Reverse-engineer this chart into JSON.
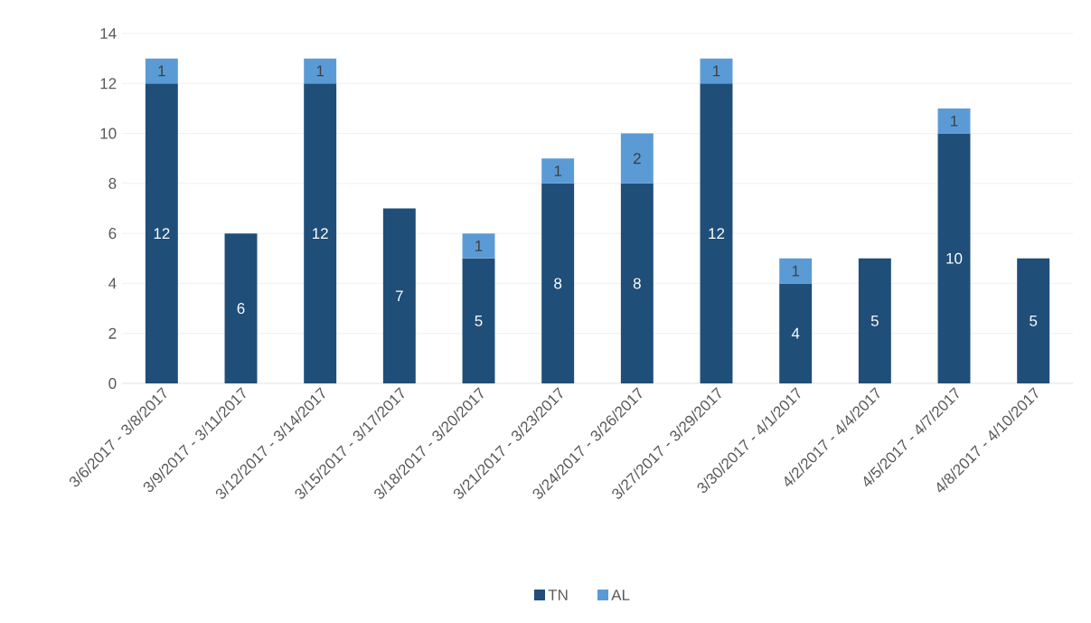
{
  "chart_data": {
    "type": "bar",
    "stacked": true,
    "grid": "y",
    "legend": "bottom",
    "categories": [
      "3/6/2017 - 3/8/2017",
      "3/9/2017 - 3/11/2017",
      "3/12/2017 - 3/14/2017",
      "3/15/2017 - 3/17/2017",
      "3/18/2017 - 3/20/2017",
      "3/21/2017 - 3/23/2017",
      "3/24/2017 - 3/26/2017",
      "3/27/2017 - 3/29/2017",
      "3/30/2017 - 4/1/2017",
      "4/2/2017 - 4/4/2017",
      "4/5/2017 - 4/7/2017",
      "4/8/2017 - 4/10/2017"
    ],
    "series": [
      {
        "name": "TN",
        "color": "#1f4e79",
        "values": [
          12,
          6,
          12,
          7,
          5,
          8,
          8,
          12,
          4,
          5,
          10,
          5
        ],
        "value_labels": [
          "12",
          "6",
          "12",
          "7",
          "5",
          "8",
          "8",
          "12",
          "4",
          "5",
          "10",
          "5"
        ]
      },
      {
        "name": "AL",
        "color": "#5b9bd5",
        "values": [
          1,
          null,
          1,
          null,
          1,
          1,
          2,
          1,
          1,
          null,
          1,
          null
        ],
        "value_labels": [
          "1",
          null,
          "1",
          null,
          "1",
          "1",
          "2",
          "1",
          "1",
          null,
          "1",
          null
        ]
      }
    ],
    "ylim": [
      0,
      14
    ],
    "yticks": [
      0,
      2,
      4,
      6,
      8,
      10,
      12,
      14
    ]
  }
}
